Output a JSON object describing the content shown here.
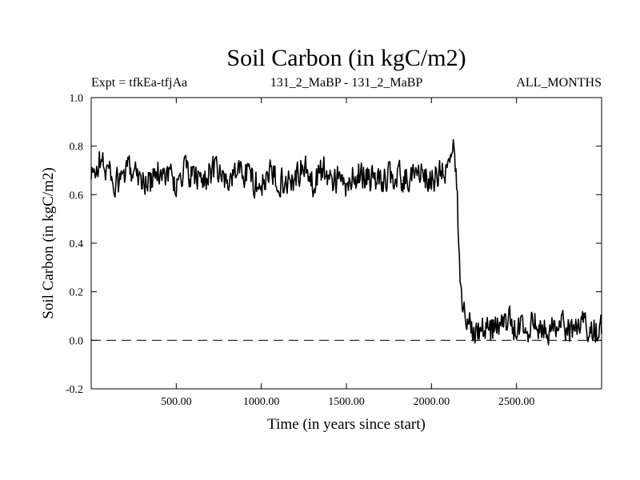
{
  "chart_data": {
    "type": "line",
    "title": "Soil Carbon (in kgC/m2)",
    "subtitle_left": "Expt = tfkEa-tfjAa",
    "subtitle_center": "131_2_MaBP - 131_2_MaBP",
    "subtitle_right": "ALL_MONTHS",
    "xlabel": "Time (in years since start)",
    "ylabel": "Soil Carbon (in kgC/m2)",
    "xlim": [
      0,
      3000
    ],
    "ylim": [
      -0.2,
      1.0
    ],
    "x_ticks": [
      500,
      1000,
      1500,
      2000,
      2500
    ],
    "x_tick_labels": [
      "500.00",
      "1000.00",
      "1500.00",
      "2000.00",
      "2500.00"
    ],
    "y_ticks": [
      -0.2,
      0.0,
      0.2,
      0.4,
      0.6,
      0.8,
      1.0
    ],
    "y_tick_labels": [
      "-0.2",
      "0.0",
      "0.2",
      "0.4",
      "0.6",
      "0.8",
      "1.0"
    ],
    "reference_line": {
      "y": 0.0,
      "style": "dashed"
    },
    "grid": false,
    "series": [
      {
        "x": [
          0,
          50,
          100,
          150,
          200,
          250,
          300,
          350,
          400,
          450,
          500,
          550,
          600,
          650,
          700,
          750,
          800,
          850,
          900,
          950,
          1000,
          1050,
          1100,
          1150,
          1200,
          1250,
          1300,
          1350,
          1400,
          1450,
          1500,
          1550,
          1600,
          1650,
          1700,
          1750,
          1800,
          1850,
          1900,
          1950,
          2000,
          2050,
          2100,
          2130,
          2150,
          2170,
          2200,
          2250,
          2300,
          2350,
          2400,
          2450,
          2500,
          2550,
          2600,
          2650,
          2700,
          2750,
          2800,
          2850,
          2900,
          2950,
          3000
        ],
        "values": [
          0.66,
          0.74,
          0.7,
          0.64,
          0.68,
          0.72,
          0.66,
          0.65,
          0.7,
          0.69,
          0.64,
          0.7,
          0.67,
          0.66,
          0.7,
          0.68,
          0.65,
          0.69,
          0.7,
          0.66,
          0.64,
          0.68,
          0.67,
          0.65,
          0.68,
          0.71,
          0.65,
          0.7,
          0.68,
          0.66,
          0.63,
          0.68,
          0.69,
          0.66,
          0.65,
          0.68,
          0.67,
          0.66,
          0.7,
          0.68,
          0.66,
          0.68,
          0.72,
          0.78,
          0.6,
          0.2,
          0.1,
          0.06,
          0.05,
          0.04,
          0.07,
          0.08,
          0.04,
          0.05,
          0.06,
          0.07,
          0.05,
          0.06,
          0.04,
          0.05,
          0.06,
          0.05,
          0.04
        ]
      }
    ]
  }
}
